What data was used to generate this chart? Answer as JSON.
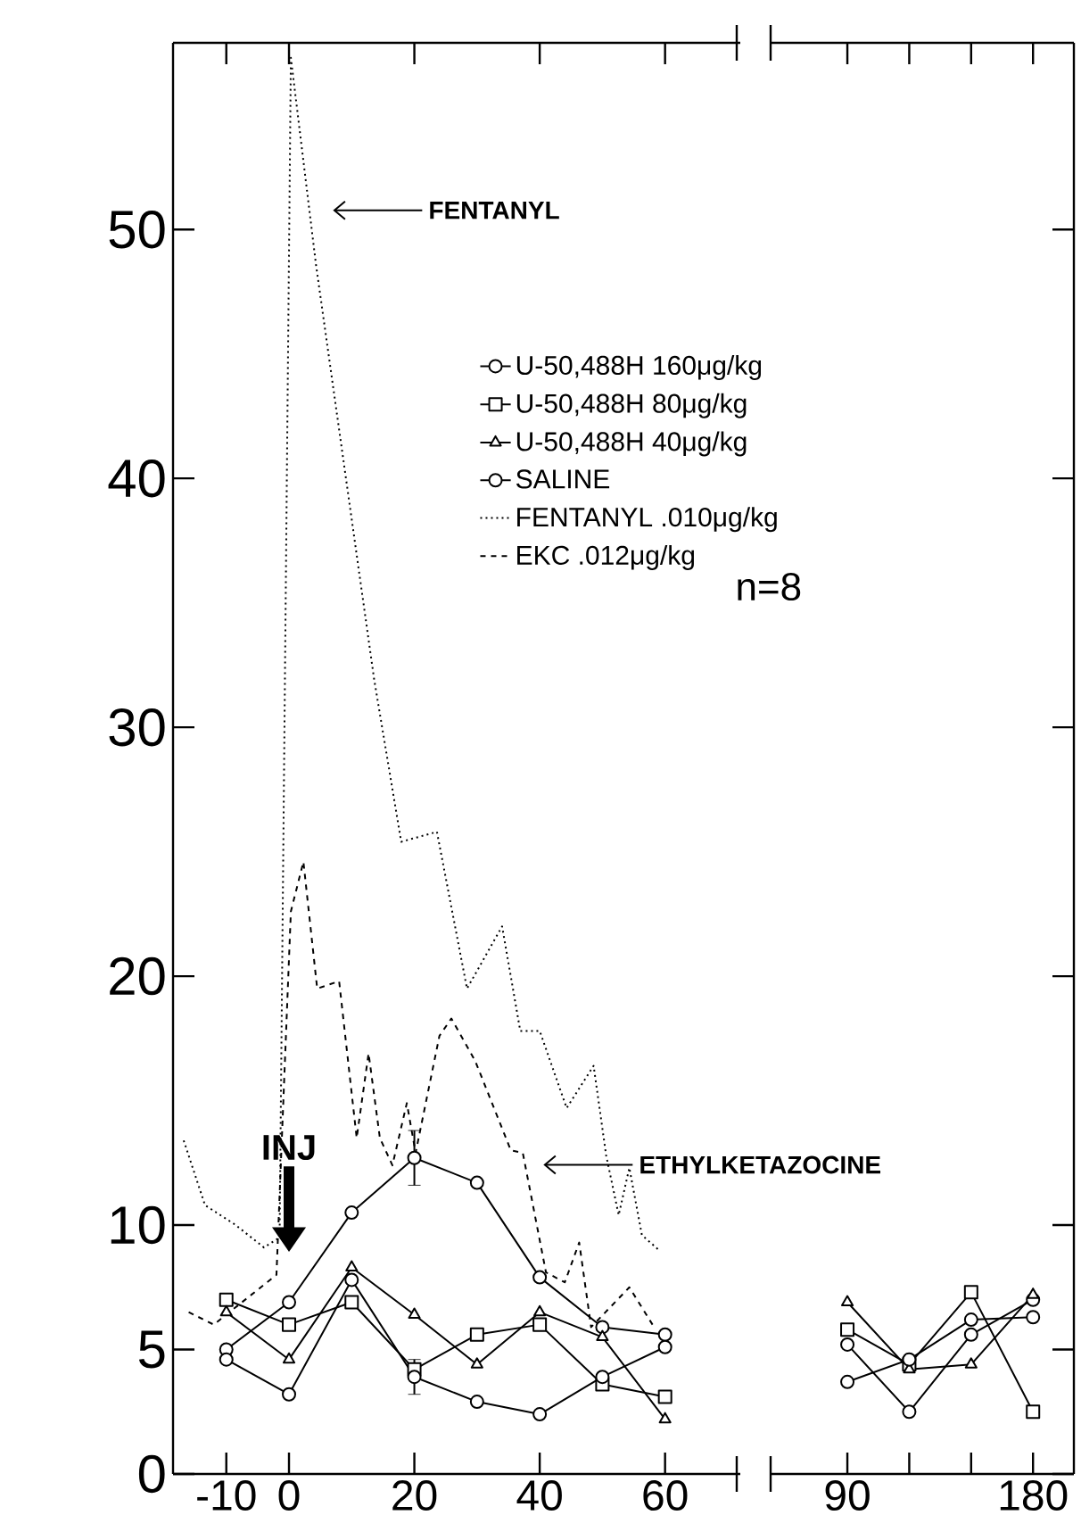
{
  "chart_data": [
    {
      "type": "line",
      "xlim": [
        -18.5,
        72
      ],
      "ylim": [
        0,
        57.5
      ],
      "xticks": [
        -10,
        0,
        20,
        40,
        60
      ],
      "yticks": [
        0,
        5,
        10,
        20,
        30,
        40,
        50
      ],
      "grid": false,
      "legend": "top right",
      "annotations": [
        "FENTANYL",
        "ETHYLKETAZOCINE",
        "n=8"
      ],
      "ref_lines": [
        {
          "axis": "x",
          "value": 0,
          "label": "INJ"
        }
      ],
      "series": [
        {
          "name": "U-50,488H 160μg/kg",
          "color": "#000000",
          "marker": "circle",
          "line_style": "solid",
          "x": [
            -10,
            0,
            10,
            20,
            30,
            40,
            50,
            60
          ],
          "values": [
            5.0,
            6.9,
            10.5,
            12.7,
            11.7,
            7.9,
            5.9,
            5.6
          ],
          "errors": [
            null,
            null,
            null,
            1.1,
            null,
            null,
            null,
            null
          ]
        },
        {
          "name": "U-50,488H 80μg/kg",
          "color": "#000000",
          "marker": "square",
          "line_style": "solid",
          "x": [
            -10,
            0,
            10,
            20,
            30,
            40,
            50,
            60
          ],
          "values": [
            7.0,
            6.0,
            6.9,
            4.2,
            5.6,
            6.0,
            3.6,
            3.1
          ]
        },
        {
          "name": "U-50,488H 40μg/kg",
          "color": "#000000",
          "marker": "triangle",
          "line_style": "solid",
          "x": [
            -10,
            0,
            10,
            20,
            30,
            40,
            50,
            60
          ],
          "values": [
            6.5,
            4.6,
            8.3,
            6.4,
            4.4,
            6.5,
            5.5,
            2.2
          ]
        },
        {
          "name": "SALINE",
          "color": "#000000",
          "marker": "circle",
          "line_style": "solid",
          "x": [
            -10,
            0,
            10,
            20,
            30,
            40,
            50,
            60
          ],
          "values": [
            4.6,
            3.2,
            7.8,
            3.9,
            2.9,
            2.4,
            3.9,
            5.1
          ],
          "errors": [
            null,
            null,
            null,
            0.7,
            null,
            null,
            null,
            null
          ]
        },
        {
          "name": "FENTANYL .010μg/kg",
          "color": "#000000",
          "marker": "none",
          "line_style": "dotted",
          "x": [
            -16.8,
            -13.4,
            -8.5,
            -4,
            -1.5,
            0.3,
            4.3,
            13.6,
            17.9,
            23.6,
            28.4,
            34,
            36.9,
            40,
            44.3,
            48.6,
            50.6,
            52.6,
            54.3,
            56.3,
            59
          ],
          "values": [
            13.4,
            10.8,
            10.0,
            9.1,
            9.5,
            56.9,
            48.6,
            31.9,
            25.4,
            25.8,
            19.5,
            22.0,
            17.8,
            17.8,
            14.7,
            16.4,
            12.8,
            10.4,
            12.3,
            9.6,
            9.0
          ]
        },
        {
          "name": "EKC .012μg/kg",
          "color": "#000000",
          "marker": "none",
          "line_style": "dashed",
          "x": [
            -16,
            -12,
            -2,
            0.3,
            2.3,
            4.5,
            8,
            10.8,
            12.7,
            14.5,
            16.5,
            18.8,
            20.2,
            24,
            25.9,
            29.7,
            35.4,
            37.3,
            41,
            44,
            46.3,
            48.2,
            54.3,
            58
          ],
          "values": [
            6.5,
            6.0,
            8.0,
            22.6,
            24.6,
            19.5,
            19.8,
            13.5,
            16.9,
            13.5,
            12.4,
            14.9,
            12.9,
            17.6,
            18.3,
            16.6,
            13.0,
            12.9,
            8.1,
            7.7,
            9.3,
            5.9,
            7.5,
            6.0
          ]
        }
      ]
    },
    {
      "type": "line",
      "xlim": [
        52.8,
        199.8
      ],
      "ylim": [
        0,
        57.5
      ],
      "xticks": [
        90,
        {
          "value": 120,
          "label": null
        },
        {
          "value": 150,
          "label": null
        },
        180
      ],
      "yticks": [
        0,
        5,
        10,
        20,
        30,
        40,
        50
      ],
      "tick_labels": "x",
      "series": [
        {
          "color": "#000000",
          "marker": "circle",
          "line_style": "solid",
          "x": [
            90,
            120,
            150,
            180
          ],
          "values": [
            5.2,
            2.5,
            5.6,
            7.0
          ]
        },
        {
          "color": "#000000",
          "marker": "square",
          "line_style": "solid",
          "x": [
            90,
            120,
            150,
            180
          ],
          "values": [
            5.8,
            4.4,
            7.3,
            2.5
          ]
        },
        {
          "color": "#000000",
          "marker": "triangle",
          "line_style": "solid",
          "x": [
            90,
            120,
            150,
            180
          ],
          "values": [
            6.9,
            4.2,
            4.4,
            7.2
          ]
        },
        {
          "color": "#000000",
          "marker": "circle",
          "line_style": "solid",
          "x": [
            90,
            120,
            150,
            180
          ],
          "values": [
            3.7,
            4.6,
            6.2,
            6.3
          ]
        }
      ]
    }
  ]
}
